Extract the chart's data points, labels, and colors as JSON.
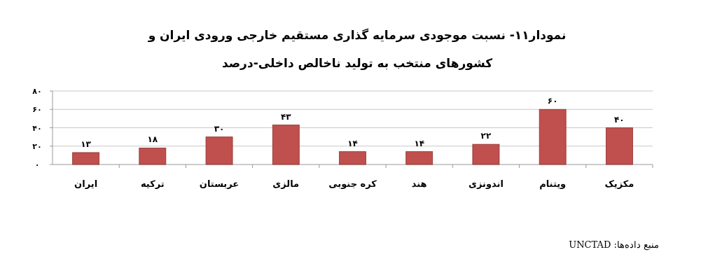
{
  "chart_data": {
    "type": "bar",
    "title": "نمودار۱۱- نسبت موجودی سرمایه گذاری مستقیم خارجی ورودی ایران و کشورهای منتخب به تولید ناخالص داخلی-درصد",
    "categories": [
      "ایران",
      "ترکیه",
      "عربستان",
      "مالزی",
      "کره جنوبی",
      "هند",
      "اندونزی",
      "ویتنام",
      "مکزیک"
    ],
    "values": [
      13,
      18,
      30,
      43,
      14,
      14,
      22,
      60,
      40
    ],
    "value_labels": [
      "۱۳",
      "۱۸",
      "۳۰",
      "۴۳",
      "۱۴",
      "۱۴",
      "۲۲",
      "۶۰",
      "۴۰"
    ],
    "color": "#c0504d",
    "ylim": [
      0,
      80
    ],
    "yticks": [
      {
        "value": 0,
        "label": "۰"
      },
      {
        "value": 20,
        "label": "۲۰"
      },
      {
        "value": 40,
        "label": "۴۰"
      },
      {
        "value": 60,
        "label": "۶۰"
      },
      {
        "value": 80,
        "label": "۸۰"
      }
    ],
    "grid": "y",
    "annotations": [
      "منبع داده‌ها: UNCTAD"
    ]
  }
}
